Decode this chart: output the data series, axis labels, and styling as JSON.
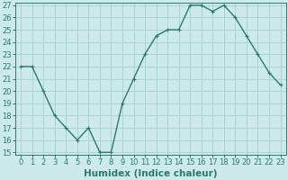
{
  "x": [
    0,
    1,
    2,
    3,
    4,
    5,
    6,
    7,
    8,
    9,
    10,
    11,
    12,
    13,
    14,
    15,
    16,
    17,
    18,
    19,
    20,
    21,
    22,
    23
  ],
  "y": [
    22,
    22,
    20,
    18,
    17,
    16,
    17,
    15,
    15,
    19,
    21,
    23,
    24.5,
    25,
    25,
    27,
    27,
    26.5,
    27,
    26,
    24.5,
    23,
    21.5,
    20.5
  ],
  "line_color": "#2d7a6a",
  "marker": "+",
  "marker_size": 3,
  "bg_color": "#cceae7",
  "grid_color": "#aad4d0",
  "xlabel": "Humidex (Indice chaleur)",
  "ylim": [
    15,
    27
  ],
  "xlim": [
    -0.5,
    23.5
  ],
  "yticks": [
    15,
    16,
    17,
    18,
    19,
    20,
    21,
    22,
    23,
    24,
    25,
    26,
    27
  ],
  "xticks": [
    0,
    1,
    2,
    3,
    4,
    5,
    6,
    7,
    8,
    9,
    10,
    11,
    12,
    13,
    14,
    15,
    16,
    17,
    18,
    19,
    20,
    21,
    22,
    23
  ],
  "xlabel_fontsize": 7.5,
  "tick_fontsize": 6,
  "line_width": 1.0,
  "marker_edge_width": 0.8
}
